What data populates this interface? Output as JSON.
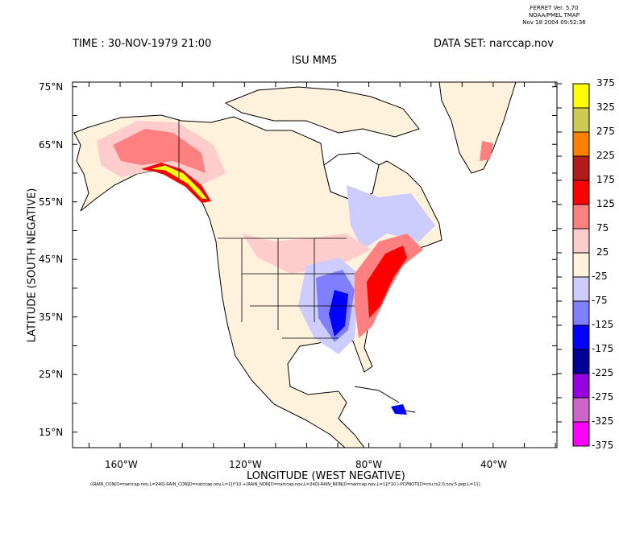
{
  "header": {
    "software": [
      "FERRET Ver. 5.70",
      "NOAA/PMEL TMAP",
      "Nov 18 2004 09:52:36"
    ],
    "time": "TIME : 30-NOV-1979 21:00",
    "dataset": "DATA SET: narccap.nov",
    "title": "ISU MM5"
  },
  "axes": {
    "xlabel": "LONGITUDE (WEST NEGATIVE)",
    "ylabel": "LATITUDE (SOUTH NEGATIVE)",
    "xticks": [
      "160°W",
      "120°W",
      "80°W",
      "40°W"
    ],
    "yticks": [
      "75°N",
      "65°N",
      "55°N",
      "45°N",
      "35°N",
      "25°N",
      "15°N"
    ],
    "xrange_deg": [
      -175.3,
      -19.5
    ],
    "yrange_deg": [
      12.3,
      75.8
    ]
  },
  "colorbar": {
    "labels": [
      "375",
      "325",
      "275",
      "225",
      "175",
      "125",
      "75",
      "25",
      "-25",
      "-75",
      "-125",
      "-175",
      "-225",
      "-275",
      "-325",
      "-375"
    ],
    "colors": [
      "#ffff00",
      "#cccc55",
      "#ff8000",
      "#b31a1a",
      "#ff0000",
      "#ff8080",
      "#ffcccc",
      "#fff2dd",
      "#ccccff",
      "#8080ff",
      "#0000ff",
      "#000099",
      "#9900e0",
      "#cc66cc",
      "#ff00ff"
    ]
  },
  "formula": "((RAIN_CON[D=narccap.nov,L=240]-RAIN_CON[D=narccap.nov,L=1])*10.+(RAIN_NON[D=narccap.nov,L=240]-RAIN_NON[D=narccap.nov,L=1])*10.)-PCPNOTI[D=cru.ts2.0.nov.5.pop,L=11]"
}
